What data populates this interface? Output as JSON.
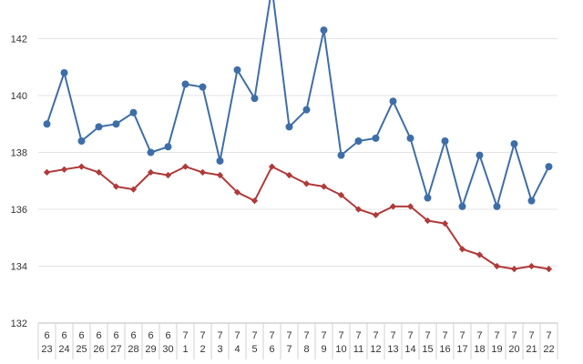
{
  "chart_data": {
    "type": "line",
    "title": "",
    "xlabel": "",
    "ylabel": "",
    "ylim": [
      132,
      143
    ],
    "yticks": [
      "132",
      "134",
      "136",
      "138",
      "140",
      "142"
    ],
    "grid": true,
    "legend": "none",
    "x": [
      {
        "month": "6",
        "day": "23"
      },
      {
        "month": "6",
        "day": "24"
      },
      {
        "month": "6",
        "day": "25"
      },
      {
        "month": "6",
        "day": "26"
      },
      {
        "month": "6",
        "day": "27"
      },
      {
        "month": "6",
        "day": "28"
      },
      {
        "month": "6",
        "day": "29"
      },
      {
        "month": "6",
        "day": "30"
      },
      {
        "month": "7",
        "day": "1"
      },
      {
        "month": "7",
        "day": "2"
      },
      {
        "month": "7",
        "day": "3"
      },
      {
        "month": "7",
        "day": "4"
      },
      {
        "month": "7",
        "day": "5"
      },
      {
        "month": "7",
        "day": "6"
      },
      {
        "month": "7",
        "day": "7"
      },
      {
        "month": "7",
        "day": "8"
      },
      {
        "month": "7",
        "day": "9"
      },
      {
        "month": "7",
        "day": "10"
      },
      {
        "month": "7",
        "day": "11"
      },
      {
        "month": "7",
        "day": "12"
      },
      {
        "month": "7",
        "day": "13"
      },
      {
        "month": "7",
        "day": "14"
      },
      {
        "month": "7",
        "day": "15"
      },
      {
        "month": "7",
        "day": "16"
      },
      {
        "month": "7",
        "day": "17"
      },
      {
        "month": "7",
        "day": "18"
      },
      {
        "month": "7",
        "day": "19"
      },
      {
        "month": "7",
        "day": "20"
      },
      {
        "month": "7",
        "day": "21"
      },
      {
        "month": "7",
        "day": "22"
      }
    ],
    "series": [
      {
        "color": "#3e6ea8",
        "marker": "circle",
        "values": [
          139.0,
          140.8,
          138.4,
          138.9,
          139.0,
          139.4,
          138.0,
          138.2,
          140.4,
          140.3,
          137.7,
          140.9,
          139.9,
          143.8,
          138.9,
          139.5,
          142.3,
          137.9,
          138.4,
          138.5,
          139.8,
          138.5,
          136.4,
          138.4,
          136.1,
          137.9,
          136.1,
          138.3,
          136.3,
          137.5
        ]
      },
      {
        "color": "#b03a3a",
        "marker": "diamond",
        "values": [
          137.3,
          137.4,
          137.5,
          137.3,
          136.8,
          136.7,
          137.3,
          137.2,
          137.5,
          137.3,
          137.2,
          136.6,
          136.3,
          137.5,
          137.2,
          136.9,
          136.8,
          136.5,
          136.0,
          135.8,
          136.1,
          136.1,
          135.6,
          135.5,
          134.6,
          134.4,
          134.0,
          133.9,
          134.0,
          133.9
        ]
      }
    ]
  }
}
